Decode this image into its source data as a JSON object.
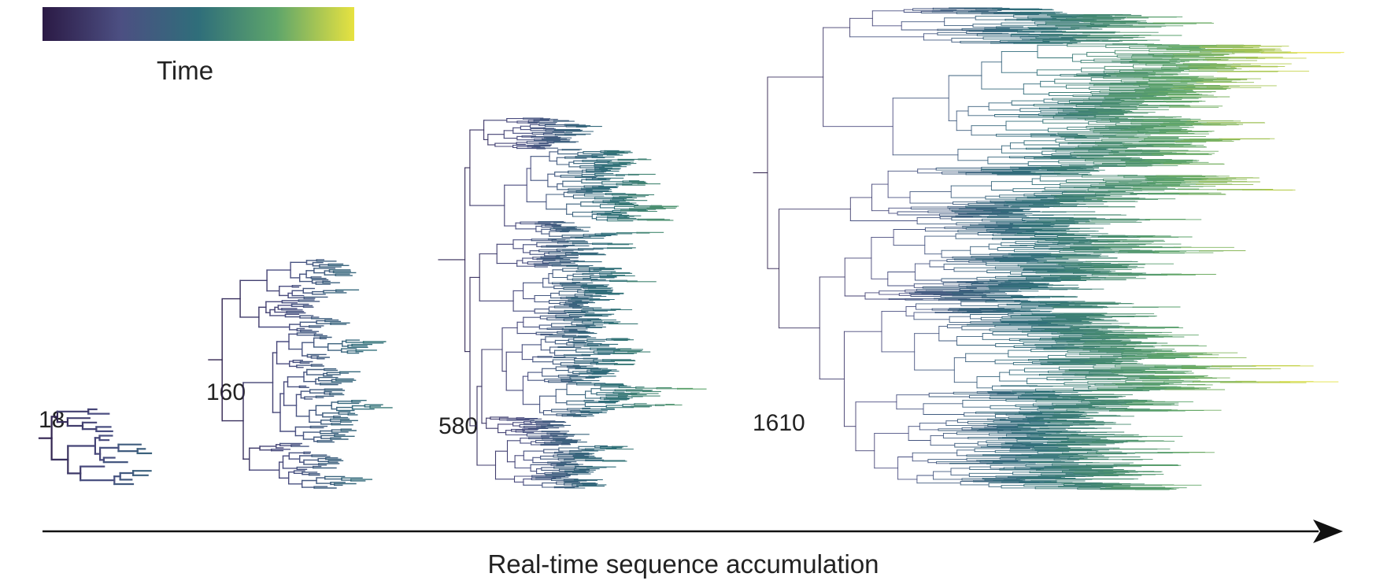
{
  "legend": {
    "title": "Time",
    "colormap": [
      "#2b1a45",
      "#4c4f82",
      "#2f6e7a",
      "#5ea56b",
      "#e7e240"
    ]
  },
  "trees": [
    {
      "label": "18",
      "tips": 18,
      "seed": 11
    },
    {
      "label": "160",
      "tips": 160,
      "seed": 23
    },
    {
      "label": "580",
      "tips": 580,
      "seed": 37
    },
    {
      "label": "1610",
      "tips": 1610,
      "seed": 53
    }
  ],
  "axis": {
    "label": "Real-time sequence accumulation"
  }
}
